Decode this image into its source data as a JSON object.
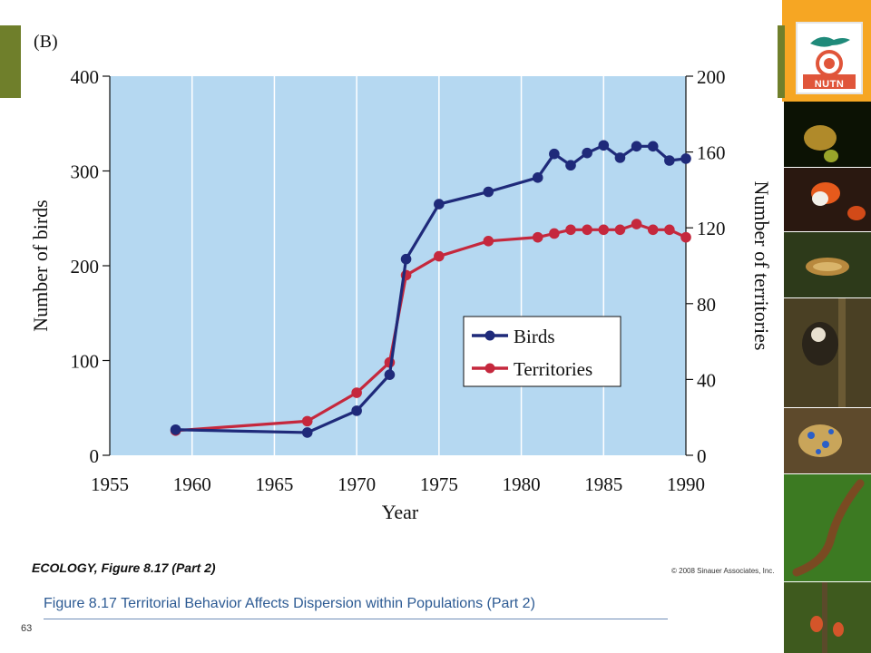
{
  "slide": {
    "panel_label": "(B)",
    "caption_bold": "ECOLOGY, Figure 8.17 (Part 2)",
    "copyright": "© 2008 Sinauer Associates, Inc.",
    "figure_title": "Figure 8.17  Territorial Behavior Affects Dispersion within Populations (Part 2)",
    "page_number": "63",
    "logo_text": "NUTN"
  },
  "colors": {
    "plot_background": "#b5d8f1",
    "birds": "#1f2a7a",
    "territories": "#c5283d",
    "left_tab": "#6f7f2b",
    "strip_top": "#f6a623",
    "figure_title": "#2c5a93"
  },
  "photo_strip": [
    {
      "name": "frog-on-plant-photo"
    },
    {
      "name": "orange-frog-photo"
    },
    {
      "name": "brown-frog-photo"
    },
    {
      "name": "monkey-photo"
    },
    {
      "name": "blue-ringed-octopus-photo"
    },
    {
      "name": "newt-photo"
    },
    {
      "name": "beetles-photo"
    }
  ],
  "chart_data": {
    "type": "line",
    "title": "",
    "xlabel": "Year",
    "ylabel_left": "Number of birds",
    "ylabel_right": "Number of territories",
    "xlim": [
      1955,
      1990
    ],
    "ylim_left": [
      0,
      400
    ],
    "ylim_right": [
      0,
      200
    ],
    "x_ticks": [
      1955,
      1960,
      1965,
      1970,
      1975,
      1980,
      1985,
      1990
    ],
    "y_ticks_left": [
      0,
      100,
      200,
      300,
      400
    ],
    "y_ticks_right": [
      0,
      40,
      80,
      120,
      160,
      200
    ],
    "grid": "vertical",
    "legend_position": "center-right",
    "series": [
      {
        "name": "Birds",
        "axis": "left",
        "x": [
          1959,
          1967,
          1970,
          1972,
          1973,
          1975,
          1978,
          1981,
          1982,
          1983,
          1984,
          1985,
          1986,
          1987,
          1988,
          1989,
          1990
        ],
        "y": [
          27,
          24,
          47,
          85,
          207,
          265,
          278,
          293,
          318,
          306,
          319,
          327,
          314,
          326,
          326,
          311,
          313
        ]
      },
      {
        "name": "Territories",
        "axis": "right",
        "x": [
          1959,
          1967,
          1970,
          1972,
          1973,
          1975,
          1978,
          1981,
          1982,
          1983,
          1984,
          1985,
          1986,
          1987,
          1988,
          1989,
          1990
        ],
        "y": [
          13,
          18,
          33,
          49,
          95,
          105,
          113,
          115,
          117,
          119,
          119,
          119,
          119,
          122,
          119,
          119,
          115
        ]
      }
    ]
  }
}
